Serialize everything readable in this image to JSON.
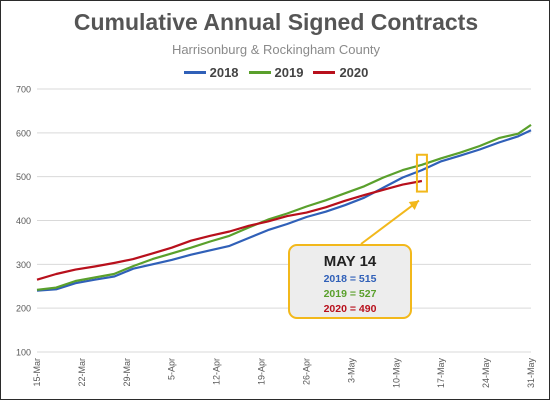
{
  "chart_title": "Cumulative Annual Signed Contracts",
  "chart_subtitle": "Harrisonburg & Rockingham County",
  "colors": {
    "s2018": "#3060b8",
    "s2019": "#5aa02c",
    "s2020": "#b8101c",
    "highlight": "#f2b81b",
    "grid": "#d9d9d9",
    "axis_text": "#595959"
  },
  "callout": {
    "title": "MAY 14",
    "rows": [
      "2018 = 515",
      "2019 = 527",
      "2020 = 490"
    ]
  },
  "chart_data": {
    "type": "line",
    "title": "Cumulative Annual Signed Contracts",
    "subtitle": "Harrisonburg & Rockingham County",
    "xlabel": "",
    "ylabel": "",
    "ylim": [
      100,
      700
    ],
    "yticks": [
      100,
      200,
      300,
      400,
      500,
      600,
      700
    ],
    "xlim": [
      "15-Mar",
      "31-May"
    ],
    "x_tick_labels": [
      "15-Mar",
      "22-Mar",
      "29-Mar",
      "5-Apr",
      "12-Apr",
      "19-Apr",
      "26-Apr",
      "3-May",
      "10-May",
      "17-May",
      "24-May",
      "31-May"
    ],
    "x_tick_day_offsets": [
      0,
      7,
      14,
      21,
      28,
      35,
      42,
      49,
      56,
      63,
      70,
      77
    ],
    "grid": "horizontal",
    "legend_position": "top-center",
    "series": [
      {
        "name": "2018",
        "points": [
          [
            "15-Mar",
            240
          ],
          [
            "18-Mar",
            243
          ],
          [
            "21-Mar",
            257
          ],
          [
            "24-Mar",
            265
          ],
          [
            "27-Mar",
            272
          ],
          [
            "30-Mar",
            290
          ],
          [
            "2-Apr",
            300
          ],
          [
            "5-Apr",
            310
          ],
          [
            "8-Apr",
            322
          ],
          [
            "11-Apr",
            332
          ],
          [
            "14-Apr",
            342
          ],
          [
            "17-Apr",
            360
          ],
          [
            "20-Apr",
            378
          ],
          [
            "23-Apr",
            392
          ],
          [
            "26-Apr",
            408
          ],
          [
            "29-Apr",
            420
          ],
          [
            "2-May",
            435
          ],
          [
            "5-May",
            452
          ],
          [
            "8-May",
            475
          ],
          [
            "11-May",
            498
          ],
          [
            "14-May",
            515
          ],
          [
            "17-May",
            535
          ],
          [
            "20-May",
            548
          ],
          [
            "23-May",
            562
          ],
          [
            "26-May",
            578
          ],
          [
            "29-May",
            592
          ],
          [
            "31-May",
            606
          ]
        ]
      },
      {
        "name": "2019",
        "points": [
          [
            "15-Mar",
            242
          ],
          [
            "18-Mar",
            247
          ],
          [
            "21-Mar",
            262
          ],
          [
            "24-Mar",
            270
          ],
          [
            "27-Mar",
            278
          ],
          [
            "30-Mar",
            296
          ],
          [
            "2-Apr",
            312
          ],
          [
            "5-Apr",
            325
          ],
          [
            "8-Apr",
            338
          ],
          [
            "11-Apr",
            352
          ],
          [
            "14-Apr",
            365
          ],
          [
            "17-Apr",
            384
          ],
          [
            "20-Apr",
            402
          ],
          [
            "23-Apr",
            416
          ],
          [
            "26-Apr",
            432
          ],
          [
            "29-Apr",
            446
          ],
          [
            "2-May",
            462
          ],
          [
            "5-May",
            478
          ],
          [
            "8-May",
            498
          ],
          [
            "11-May",
            515
          ],
          [
            "14-May",
            527
          ],
          [
            "17-May",
            542
          ],
          [
            "20-May",
            555
          ],
          [
            "23-May",
            570
          ],
          [
            "26-May",
            588
          ],
          [
            "29-May",
            598
          ],
          [
            "31-May",
            618
          ]
        ]
      },
      {
        "name": "2020",
        "points": [
          [
            "15-Mar",
            265
          ],
          [
            "18-Mar",
            278
          ],
          [
            "21-Mar",
            288
          ],
          [
            "24-Mar",
            295
          ],
          [
            "27-Mar",
            303
          ],
          [
            "30-Mar",
            312
          ],
          [
            "2-Apr",
            325
          ],
          [
            "5-Apr",
            338
          ],
          [
            "8-Apr",
            354
          ],
          [
            "11-Apr",
            365
          ],
          [
            "14-Apr",
            375
          ],
          [
            "17-Apr",
            388
          ],
          [
            "20-Apr",
            398
          ],
          [
            "23-Apr",
            410
          ],
          [
            "26-Apr",
            418
          ],
          [
            "29-Apr",
            430
          ],
          [
            "2-May",
            445
          ],
          [
            "5-May",
            458
          ],
          [
            "8-May",
            470
          ],
          [
            "11-May",
            482
          ],
          [
            "14-May",
            490
          ]
        ]
      }
    ],
    "highlight": {
      "date": "14-May",
      "low": 466,
      "high": 550,
      "label": "MAY 14"
    }
  }
}
